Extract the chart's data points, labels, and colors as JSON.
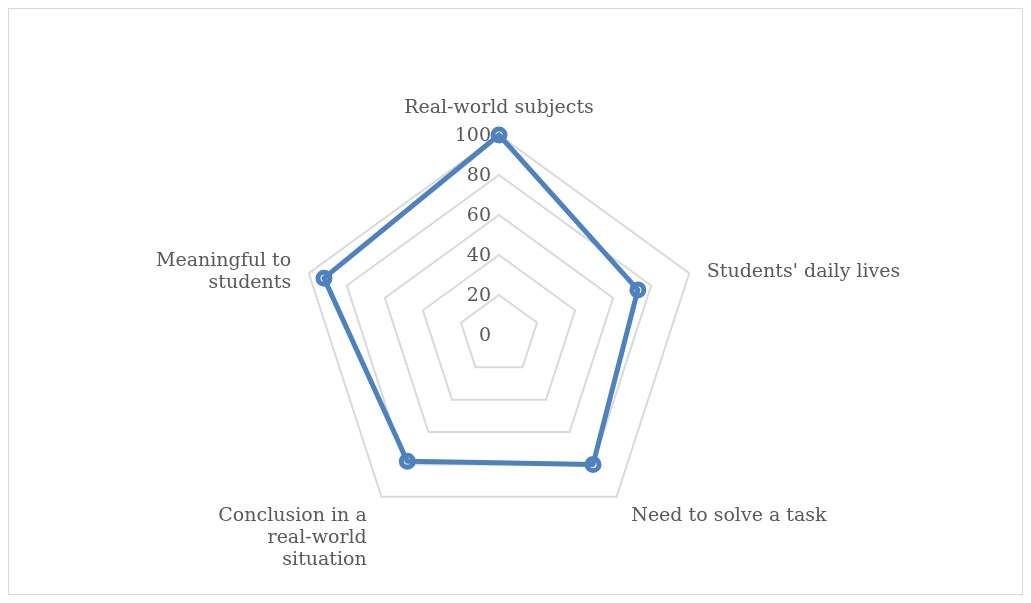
{
  "chart_data": {
    "type": "radar",
    "categories": [
      "Real-world subjects",
      "Students' daily lives",
      "Need to solve a task",
      "Conclusion in a real-world situation",
      "Meaningful to students"
    ],
    "series": [
      {
        "color": "#4f81bd",
        "values": [
          100,
          73,
          80,
          78,
          92
        ]
      }
    ],
    "ylim": [
      0,
      100
    ],
    "yticks": [
      0,
      20,
      40,
      60,
      80,
      100
    ],
    "grid": true,
    "marker": "circle"
  }
}
